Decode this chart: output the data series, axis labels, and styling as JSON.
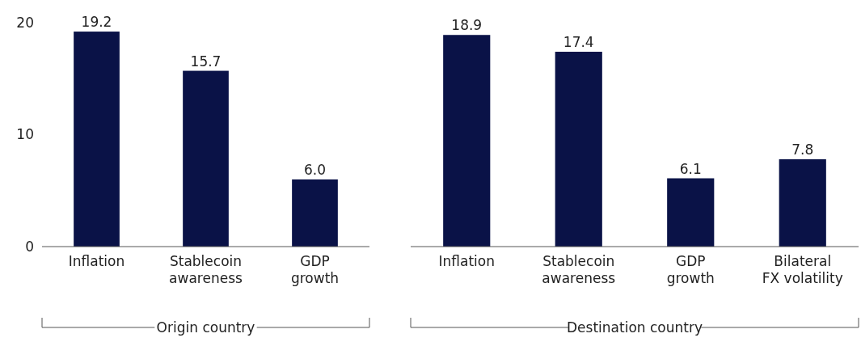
{
  "chart_data": [
    {
      "type": "bar",
      "categories": [
        "Inflation",
        "Stablecoin awareness",
        "GDP growth"
      ],
      "values": [
        19.2,
        15.7,
        6.0
      ],
      "value_labels": [
        "19.2",
        "15.7",
        "6.0"
      ],
      "color": "#0a1247",
      "ylim": [
        0,
        20
      ],
      "yticks": [
        0,
        10,
        20
      ],
      "xlabel": "Origin country"
    },
    {
      "type": "bar",
      "categories": [
        "Inflation",
        "Stablecoin awareness",
        "GDP growth",
        "Bilateral FX volatility"
      ],
      "values": [
        18.9,
        17.4,
        6.1,
        7.8
      ],
      "value_labels": [
        "18.9",
        "17.4",
        "6.1",
        "7.8"
      ],
      "color": "#0a1247",
      "ylim": [
        0,
        20
      ],
      "tick_labels": "x",
      "xlabel": "Destination country"
    }
  ]
}
